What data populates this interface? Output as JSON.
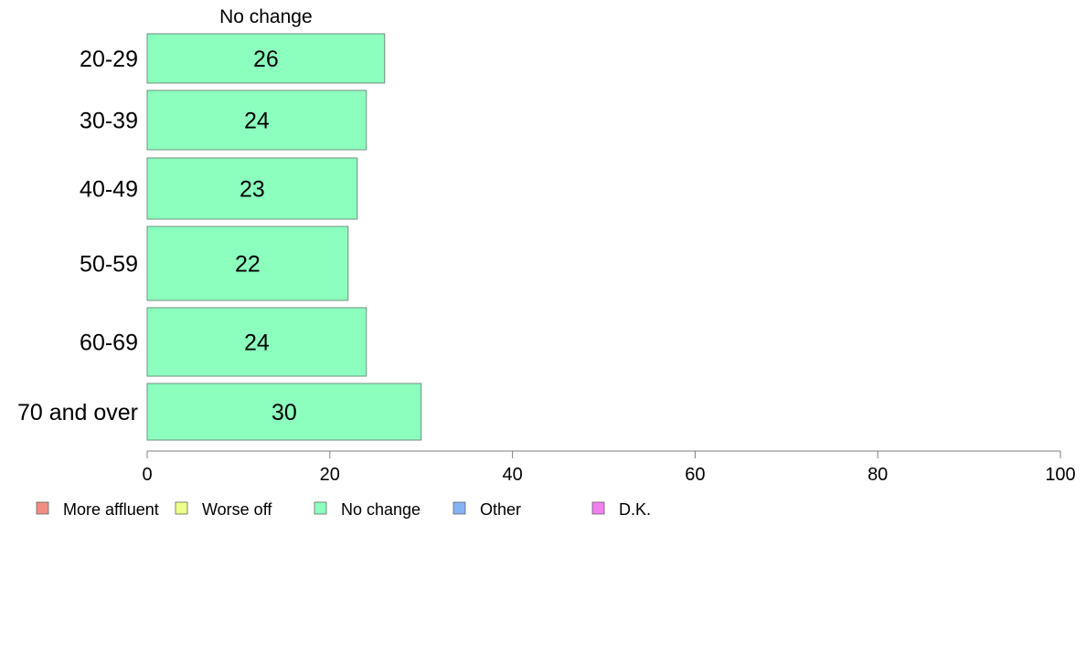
{
  "chart_data": {
    "type": "bar",
    "orientation": "horizontal",
    "categories": [
      "20-29",
      "30-39",
      "40-49",
      "50-59",
      "60-69",
      "70 and over"
    ],
    "series": [
      {
        "name": "No change",
        "values": [
          26,
          24,
          23,
          22,
          24,
          30
        ],
        "color": "#8cffbf"
      }
    ],
    "xlim": [
      0,
      100
    ],
    "xticks": [
      "0",
      "20",
      "40",
      "60",
      "80",
      "100"
    ],
    "grid": false,
    "legend": {
      "placement": "bottom-left",
      "items": [
        {
          "label": "More affluent",
          "color": "#f28b82"
        },
        {
          "label": "Worse off",
          "color": "#eeff8c"
        },
        {
          "label": "No change",
          "color": "#8cffbf"
        },
        {
          "label": "Other",
          "color": "#82b4f5"
        },
        {
          "label": "D.K.",
          "color": "#f07ff0"
        }
      ]
    }
  }
}
